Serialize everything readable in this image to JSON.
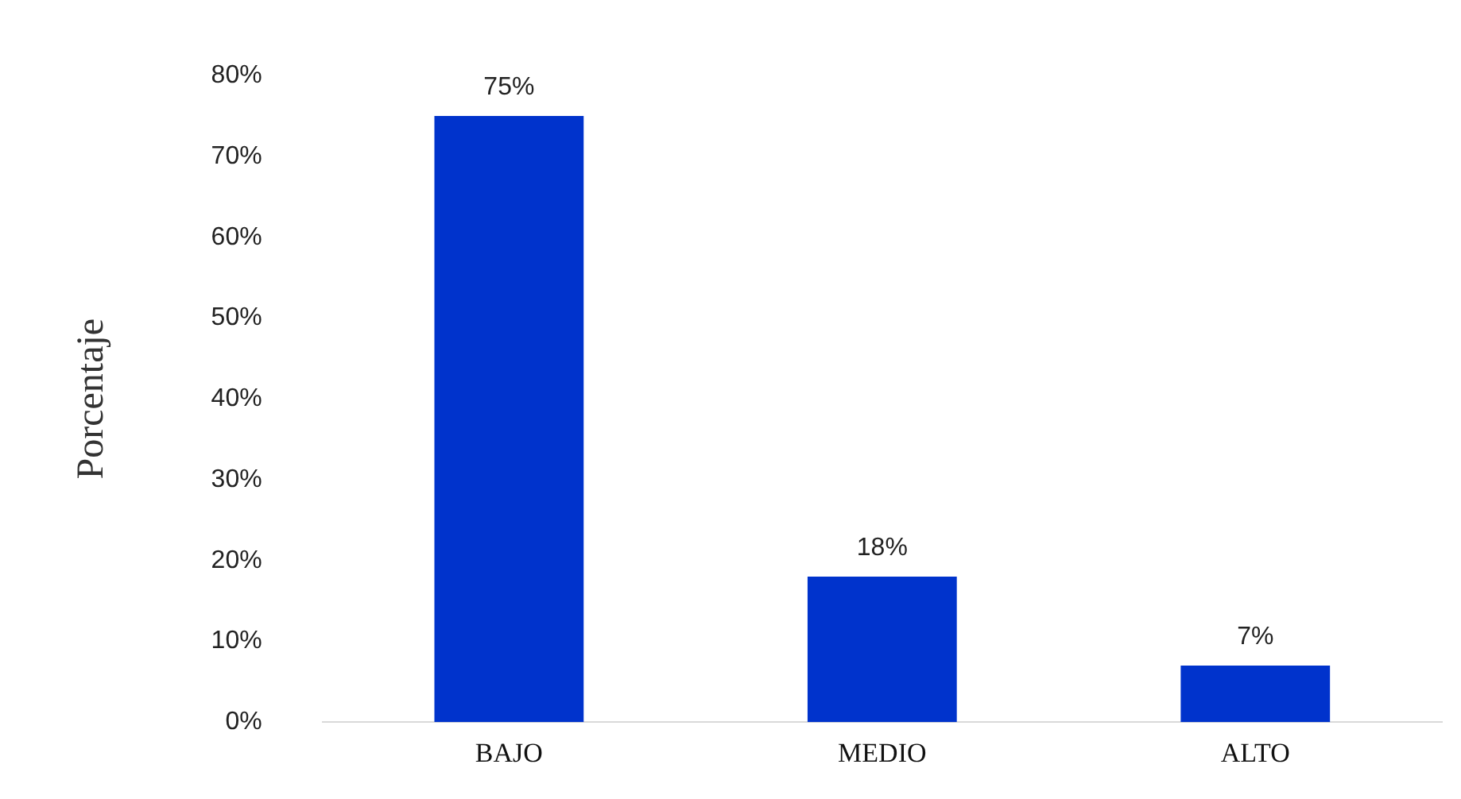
{
  "chart_data": {
    "type": "bar",
    "ylabel": "Porcentaje",
    "categories": [
      "BAJO",
      "MEDIO",
      "ALTO"
    ],
    "values": [
      75,
      18,
      7
    ],
    "value_labels": [
      "75%",
      "18%",
      "7%"
    ],
    "color": "#0033cc",
    "ylim": [
      0,
      80
    ],
    "yticks": [
      {
        "value": 0,
        "label": "0%"
      },
      {
        "value": 10,
        "label": "10%"
      },
      {
        "value": 20,
        "label": "20%"
      },
      {
        "value": 30,
        "label": "30%"
      },
      {
        "value": 40,
        "label": "40%"
      },
      {
        "value": 50,
        "label": "50%"
      },
      {
        "value": 60,
        "label": "60%"
      },
      {
        "value": 70,
        "label": "70%"
      },
      {
        "value": 80,
        "label": "80%"
      }
    ],
    "grid": false,
    "legend": false
  }
}
